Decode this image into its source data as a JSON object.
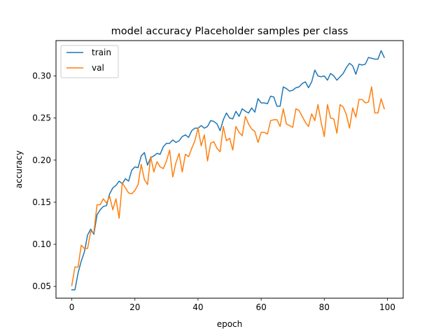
{
  "chart_data": {
    "type": "line",
    "title": "model accuracy Placeholder samples per class",
    "xlabel": "epoch",
    "ylabel": "accuracy",
    "xlim": [
      -5,
      105
    ],
    "ylim": [
      0.036,
      0.342
    ],
    "xticks": [
      0,
      20,
      40,
      60,
      80,
      100
    ],
    "xtick_labels": [
      "0",
      "20",
      "40",
      "60",
      "80",
      "100"
    ],
    "yticks": [
      0.05,
      0.1,
      0.15,
      0.2,
      0.25,
      0.3
    ],
    "ytick_labels": [
      "0.05",
      "0.10",
      "0.15",
      "0.20",
      "0.25",
      "0.30"
    ],
    "grid": false,
    "legend": "upper-left",
    "x": [
      0,
      1,
      2,
      3,
      4,
      5,
      6,
      7,
      8,
      9,
      10,
      11,
      12,
      13,
      14,
      15,
      16,
      17,
      18,
      19,
      20,
      21,
      22,
      23,
      24,
      25,
      26,
      27,
      28,
      29,
      30,
      31,
      32,
      33,
      34,
      35,
      36,
      37,
      38,
      39,
      40,
      41,
      42,
      43,
      44,
      45,
      46,
      47,
      48,
      49,
      50,
      51,
      52,
      53,
      54,
      55,
      56,
      57,
      58,
      59,
      60,
      61,
      62,
      63,
      64,
      65,
      66,
      67,
      68,
      69,
      70,
      71,
      72,
      73,
      74,
      75,
      76,
      77,
      78,
      79,
      80,
      81,
      82,
      83,
      84,
      85,
      86,
      87,
      88,
      89,
      90,
      91,
      92,
      93,
      94,
      95,
      96,
      97,
      98,
      99
    ],
    "series": [
      {
        "name": "train",
        "color": "#1f77b4",
        "values": [
          0.046,
          0.046,
          0.066,
          0.08,
          0.091,
          0.111,
          0.118,
          0.112,
          0.135,
          0.141,
          0.145,
          0.146,
          0.16,
          0.167,
          0.17,
          0.175,
          0.172,
          0.178,
          0.175,
          0.188,
          0.192,
          0.191,
          0.205,
          0.209,
          0.194,
          0.203,
          0.205,
          0.208,
          0.207,
          0.216,
          0.22,
          0.22,
          0.224,
          0.221,
          0.223,
          0.228,
          0.23,
          0.227,
          0.235,
          0.238,
          0.238,
          0.241,
          0.238,
          0.24,
          0.247,
          0.246,
          0.243,
          0.235,
          0.248,
          0.256,
          0.25,
          0.249,
          0.258,
          0.252,
          0.261,
          0.258,
          0.256,
          0.262,
          0.257,
          0.273,
          0.268,
          0.268,
          0.267,
          0.276,
          0.275,
          0.264,
          0.264,
          0.287,
          0.285,
          0.282,
          0.283,
          0.286,
          0.287,
          0.291,
          0.293,
          0.286,
          0.293,
          0.307,
          0.3,
          0.299,
          0.3,
          0.295,
          0.303,
          0.3,
          0.295,
          0.299,
          0.303,
          0.31,
          0.315,
          0.312,
          0.302,
          0.314,
          0.313,
          0.314,
          0.322,
          0.321,
          0.32,
          0.32,
          0.33,
          0.322
        ]
      },
      {
        "name": "val",
        "color": "#ff7f0e",
        "values": [
          0.051,
          0.073,
          0.073,
          0.099,
          0.095,
          0.095,
          0.115,
          0.114,
          0.147,
          0.147,
          0.154,
          0.149,
          0.157,
          0.141,
          0.154,
          0.131,
          0.173,
          0.167,
          0.161,
          0.16,
          0.164,
          0.171,
          0.195,
          0.177,
          0.171,
          0.204,
          0.186,
          0.198,
          0.192,
          0.19,
          0.199,
          0.212,
          0.18,
          0.197,
          0.208,
          0.186,
          0.207,
          0.204,
          0.214,
          0.223,
          0.238,
          0.217,
          0.23,
          0.199,
          0.22,
          0.222,
          0.214,
          0.21,
          0.24,
          0.223,
          0.226,
          0.212,
          0.24,
          0.233,
          0.229,
          0.252,
          0.243,
          0.237,
          0.234,
          0.221,
          0.233,
          0.233,
          0.231,
          0.247,
          0.248,
          0.248,
          0.24,
          0.261,
          0.243,
          0.241,
          0.239,
          0.261,
          0.259,
          0.252,
          0.245,
          0.24,
          0.255,
          0.247,
          0.266,
          0.245,
          0.228,
          0.266,
          0.25,
          0.249,
          0.232,
          0.266,
          0.263,
          0.254,
          0.238,
          0.262,
          0.251,
          0.272,
          0.272,
          0.268,
          0.269,
          0.287,
          0.256,
          0.256,
          0.273,
          0.261
        ]
      }
    ]
  }
}
